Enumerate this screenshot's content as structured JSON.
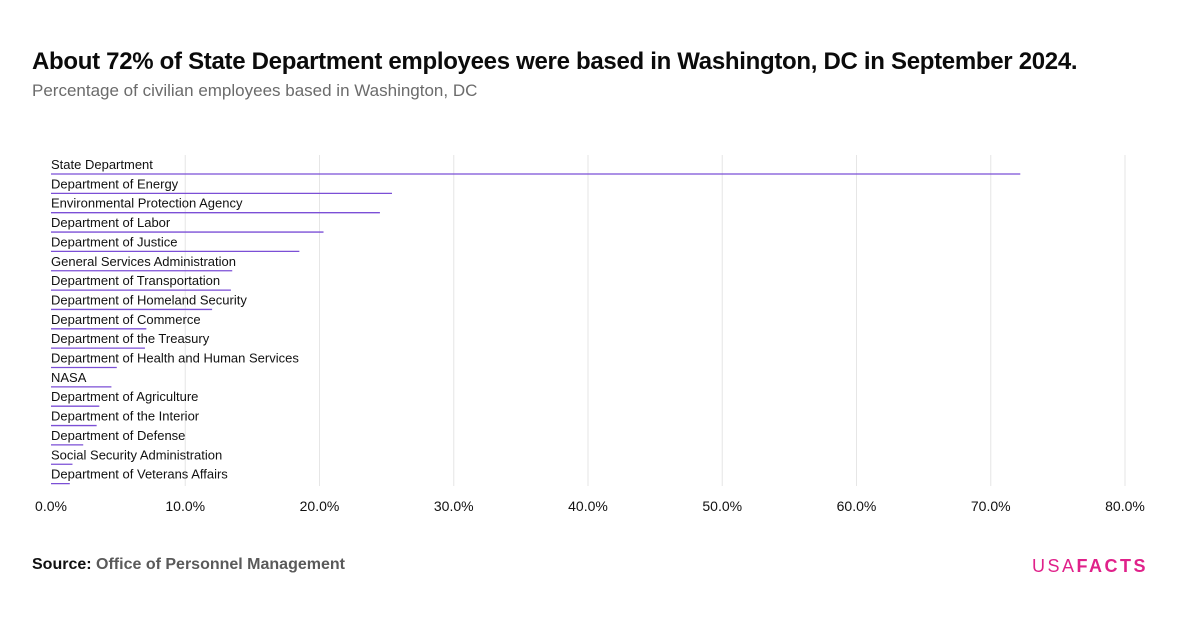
{
  "header": {
    "title": "About 72% of State Department employees were based in Washington, DC in September 2024.",
    "subtitle": "Percentage of civilian employees based in Washington, DC"
  },
  "footer": {
    "source_prefix": "Source:",
    "source_name": "Office of Personnel Management",
    "logo_part1": "USA",
    "logo_part2": "FACTS"
  },
  "colors": {
    "bar": "#7b4fd6",
    "grid": "#e6e6e6",
    "logo": "#e0218a"
  },
  "chart_data": {
    "type": "bar",
    "orientation": "horizontal",
    "title": "About 72% of State Department employees were based in Washington, DC in September 2024.",
    "subtitle": "Percentage of civilian employees based in Washington, DC",
    "categories": [
      "State Department",
      "Department of Energy",
      "Environmental Protection Agency",
      "Department of Labor",
      "Department of Justice",
      "General Services Administration",
      "Department of Transportation",
      "Department of Homeland Security",
      "Department of Commerce",
      "Department of the Treasury",
      "Department of Health and Human Services",
      "NASA",
      "Department of Agriculture",
      "Department of the Interior",
      "Department of Defense",
      "Social Security Administration",
      "Department of Veterans Affairs"
    ],
    "values": [
      72.2,
      25.4,
      24.5,
      20.3,
      18.5,
      13.5,
      13.4,
      12.0,
      7.1,
      7.0,
      4.9,
      4.5,
      3.6,
      3.4,
      2.4,
      1.6,
      1.4
    ],
    "xlim": [
      0,
      80
    ],
    "xticks": [
      0,
      10,
      20,
      30,
      40,
      50,
      60,
      70,
      80
    ],
    "xtick_labels": [
      "0.0%",
      "10.0%",
      "20.0%",
      "30.0%",
      "40.0%",
      "50.0%",
      "60.0%",
      "70.0%",
      "80.0%"
    ],
    "xlabel": "",
    "ylabel": "",
    "grid": true,
    "legend": "none"
  }
}
